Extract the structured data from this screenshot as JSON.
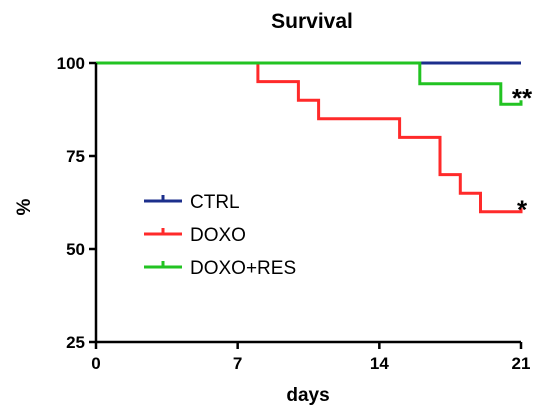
{
  "chart_data": {
    "type": "line",
    "step": true,
    "title": "Survival",
    "xlabel": "days",
    "ylabel": "%",
    "xlim": [
      0,
      21
    ],
    "ylim": [
      25,
      100
    ],
    "xticks": [
      0,
      7,
      14,
      21
    ],
    "yticks": [
      25,
      50,
      75,
      100
    ],
    "xtick_labels": [
      "0",
      "7",
      "14",
      "21"
    ],
    "ytick_labels": [
      "25",
      "50",
      "75",
      "100"
    ],
    "grid": false,
    "legend": "center-left",
    "series": [
      {
        "name": "CTRL",
        "color": "#1c2f8c",
        "points": [
          [
            0,
            100
          ],
          [
            21,
            100
          ]
        ]
      },
      {
        "name": "DOXO",
        "color": "#ff2a2a",
        "points": [
          [
            0,
            100
          ],
          [
            8,
            100
          ],
          [
            8,
            95
          ],
          [
            10,
            95
          ],
          [
            10,
            90
          ],
          [
            11,
            90
          ],
          [
            11,
            85
          ],
          [
            15,
            85
          ],
          [
            15,
            80
          ],
          [
            17,
            80
          ],
          [
            17,
            70
          ],
          [
            18,
            70
          ],
          [
            18,
            65
          ],
          [
            19,
            65
          ],
          [
            19,
            60
          ],
          [
            21,
            60
          ],
          [
            21,
            61
          ]
        ]
      },
      {
        "name": "DOXO+RES",
        "color": "#22c322",
        "points": [
          [
            0,
            100
          ],
          [
            16,
            100
          ],
          [
            16,
            94.4
          ],
          [
            20,
            94.4
          ],
          [
            20,
            88.9
          ],
          [
            21,
            88.9
          ],
          [
            21,
            90
          ]
        ]
      }
    ],
    "annotations": [
      {
        "text": "**",
        "x": 21,
        "y": 92
      },
      {
        "text": "*",
        "x": 21,
        "y": 62
      }
    ]
  }
}
